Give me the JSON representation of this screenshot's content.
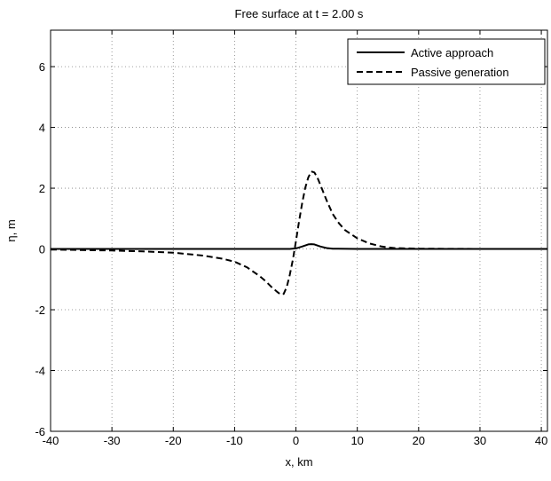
{
  "chart_data": {
    "type": "line",
    "title": "Free surface at t = 2.00 s",
    "xlabel": "x, km",
    "ylabel": "η, m",
    "xlim": [
      -40,
      41
    ],
    "ylim": [
      -6,
      7.2
    ],
    "xticks": [
      -40,
      -30,
      -20,
      -10,
      0,
      10,
      20,
      30,
      40
    ],
    "xtick_labels": [
      "-40",
      "-30",
      "-20",
      "-10",
      "0",
      "10",
      "20",
      "30",
      "40"
    ],
    "yticks": [
      -6,
      -4,
      -2,
      0,
      2,
      4,
      6
    ],
    "ytick_labels": [
      "-6",
      "-4",
      "-2",
      "0",
      "2",
      "4",
      "6"
    ],
    "grid": true,
    "legend_position": "top-right",
    "series": [
      {
        "name": "Active approach",
        "style": "solid",
        "color": "#000000",
        "x": [
          -40,
          -10,
          -3,
          -1,
          0,
          1,
          2,
          2.5,
          3,
          4,
          5,
          6,
          10,
          20,
          41
        ],
        "y": [
          0,
          0,
          0,
          0,
          0.02,
          0.08,
          0.15,
          0.16,
          0.15,
          0.08,
          0.03,
          0.01,
          0,
          0,
          0
        ]
      },
      {
        "name": "Passive generation",
        "style": "dashed",
        "color": "#000000",
        "x": [
          -40,
          -30,
          -25,
          -20,
          -15,
          -12,
          -10,
          -8,
          -6,
          -5,
          -4,
          -3,
          -2.5,
          -2,
          -1.5,
          -1,
          -0.5,
          0,
          0.5,
          1,
          1.5,
          2,
          2.5,
          3,
          3.5,
          4,
          5,
          6,
          7,
          8,
          10,
          12,
          14,
          16,
          20,
          30,
          41
        ],
        "y": [
          -0.02,
          -0.05,
          -0.08,
          -0.12,
          -0.22,
          -0.32,
          -0.42,
          -0.6,
          -0.88,
          -1.05,
          -1.25,
          -1.42,
          -1.5,
          -1.48,
          -1.25,
          -0.85,
          -0.35,
          0.25,
          0.9,
          1.5,
          2.0,
          2.35,
          2.55,
          2.52,
          2.35,
          2.1,
          1.6,
          1.15,
          0.85,
          0.62,
          0.35,
          0.18,
          0.08,
          0.03,
          0.01,
          0,
          0
        ]
      }
    ]
  }
}
